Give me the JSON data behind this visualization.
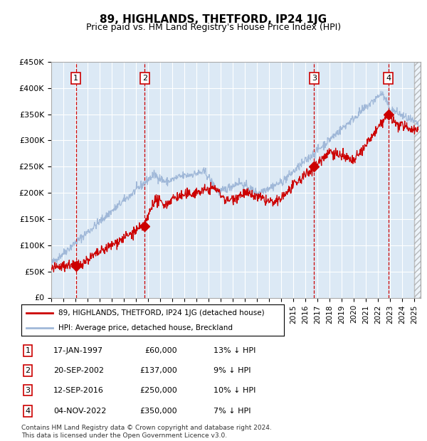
{
  "title": "89, HIGHLANDS, THETFORD, IP24 1JG",
  "subtitle": "Price paid vs. HM Land Registry's House Price Index (HPI)",
  "xlim_start": 1995.0,
  "xlim_end": 2025.5,
  "ylim": [
    0,
    450000
  ],
  "yticks": [
    0,
    50000,
    100000,
    150000,
    200000,
    250000,
    300000,
    350000,
    400000,
    450000
  ],
  "ytick_labels": [
    "£0",
    "£50K",
    "£100K",
    "£150K",
    "£200K",
    "£250K",
    "£300K",
    "£350K",
    "£400K",
    "£450K"
  ],
  "price_paid_color": "#cc0000",
  "hpi_color": "#a0b8d8",
  "dashed_line_color": "#cc0000",
  "plot_bg_color": "#dce9f5",
  "grid_color": "#ffffff",
  "sale_points": [
    {
      "year": 1997.04,
      "price": 60000,
      "label": "1"
    },
    {
      "year": 2002.72,
      "price": 137000,
      "label": "2"
    },
    {
      "year": 2016.7,
      "price": 250000,
      "label": "3"
    },
    {
      "year": 2022.84,
      "price": 350000,
      "label": "4"
    }
  ],
  "legend_entries": [
    "89, HIGHLANDS, THETFORD, IP24 1JG (detached house)",
    "HPI: Average price, detached house, Breckland"
  ],
  "table_data": [
    [
      "1",
      "17-JAN-1997",
      "£60,000",
      "13% ↓ HPI"
    ],
    [
      "2",
      "20-SEP-2002",
      "£137,000",
      "9% ↓ HPI"
    ],
    [
      "3",
      "12-SEP-2016",
      "£250,000",
      "10% ↓ HPI"
    ],
    [
      "4",
      "04-NOV-2022",
      "£350,000",
      "7% ↓ HPI"
    ]
  ],
  "footnote": "Contains HM Land Registry data © Crown copyright and database right 2024.\nThis data is licensed under the Open Government Licence v3.0.",
  "xticks": [
    1995,
    1996,
    1997,
    1998,
    1999,
    2000,
    2001,
    2002,
    2003,
    2004,
    2005,
    2006,
    2007,
    2008,
    2009,
    2010,
    2011,
    2012,
    2013,
    2014,
    2015,
    2016,
    2017,
    2018,
    2019,
    2020,
    2021,
    2022,
    2023,
    2024,
    2025
  ]
}
